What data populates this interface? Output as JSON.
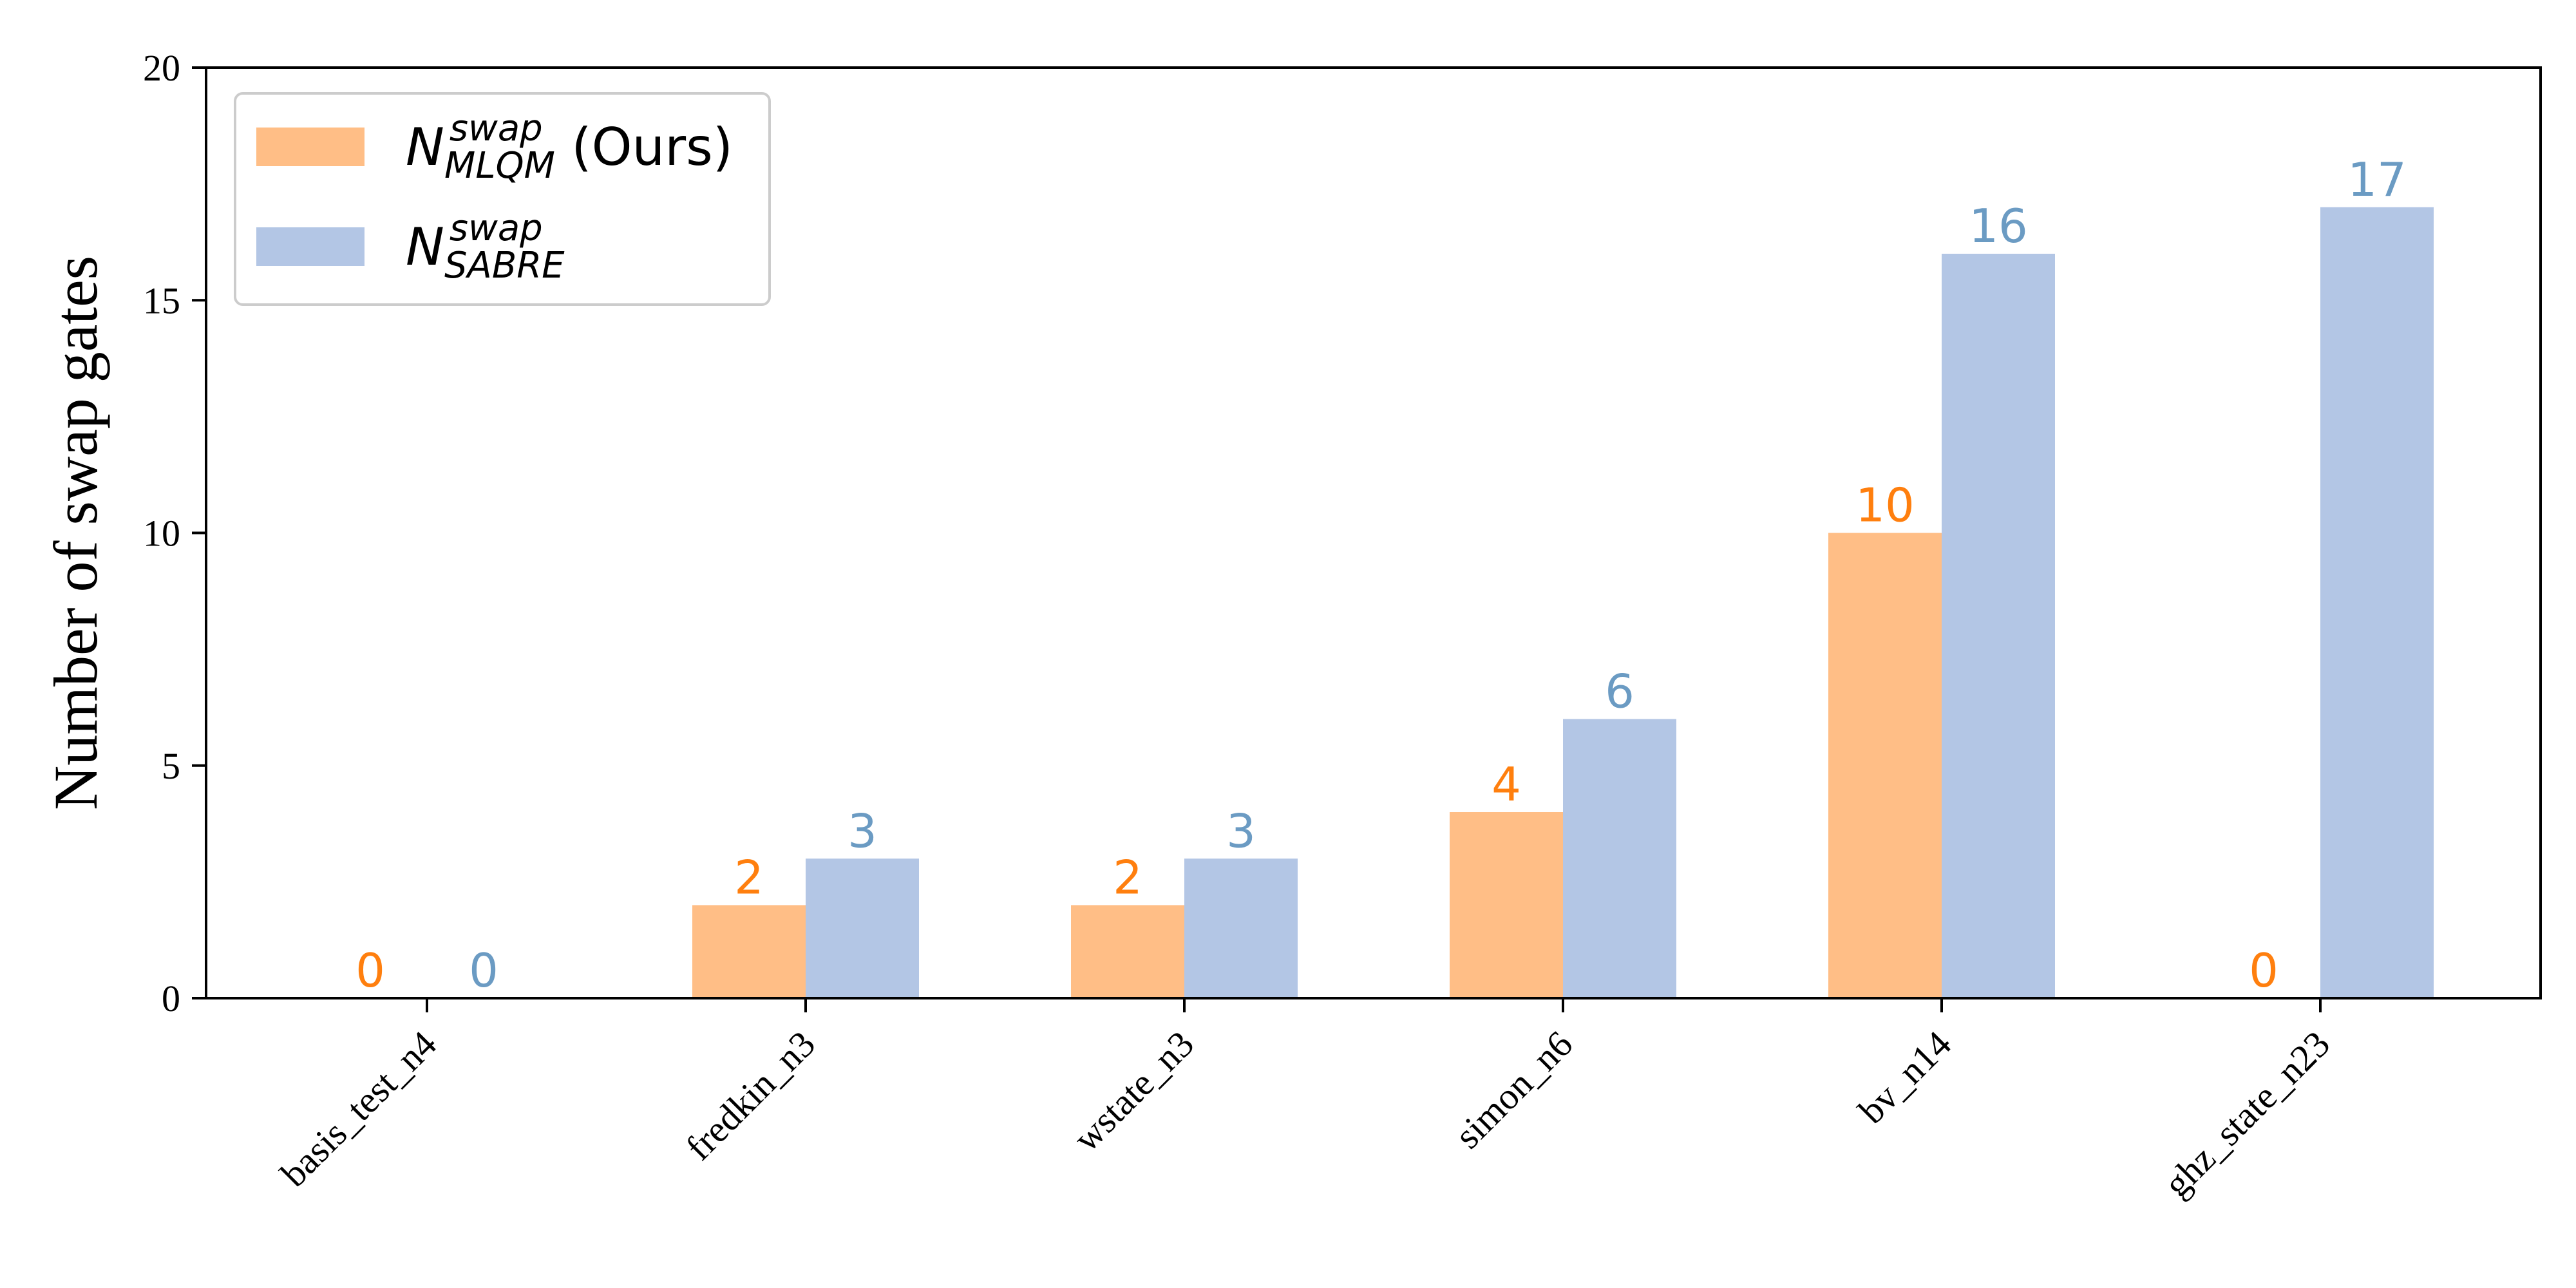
{
  "chart_data": {
    "type": "bar",
    "title": "",
    "xlabel": "",
    "ylabel": "Number of swap gates",
    "ylim": [
      0,
      20
    ],
    "yticks": [
      0,
      5,
      10,
      15,
      20
    ],
    "categories": [
      "basis_test_n4",
      "fredkin_n3",
      "wstate_n3",
      "simon_n6",
      "bv_n14",
      "ghz_state_n23"
    ],
    "series": [
      {
        "key": "mlqm",
        "name_base": "N",
        "name_sup": "swap",
        "name_sub": "MLQM",
        "name_suffix": " (Ours)",
        "values": [
          0,
          2,
          2,
          4,
          10,
          0
        ],
        "color": "#ffbe86",
        "label_color": "#ff7f0e"
      },
      {
        "key": "sabre",
        "name_base": "N",
        "name_sup": "swap",
        "name_sub": "SABRE",
        "name_suffix": "",
        "values": [
          0,
          3,
          3,
          6,
          16,
          17
        ],
        "color": "#b3c6e5",
        "label_color": "#6b9bc3"
      }
    ],
    "legend_position": "top-left",
    "grid": false
  }
}
